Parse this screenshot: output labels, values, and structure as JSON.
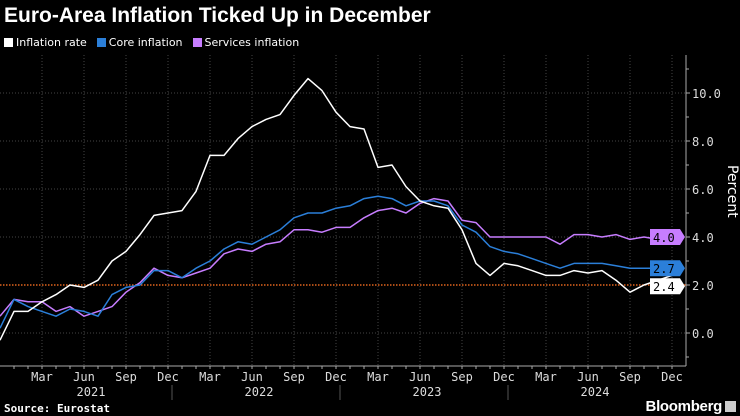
{
  "chart_data": {
    "type": "line",
    "title": "Euro-Area Inflation Ticked Up in December",
    "ylabel": "Percent",
    "ylim": [
      -1.3,
      11.3
    ],
    "yticks": [
      "0.0",
      "2.0",
      "4.0",
      "6.0",
      "8.0",
      "10.0"
    ],
    "x_start": "2020-12",
    "x_end": "2024-12",
    "month_tick_labels": [
      "Mar",
      "Jun",
      "Sep",
      "Dec",
      "Mar",
      "Jun",
      "Sep",
      "Dec",
      "Mar",
      "Jun",
      "Sep",
      "Dec",
      "Mar",
      "Jun",
      "Sep",
      "Dec"
    ],
    "year_labels": [
      "2021",
      "2022",
      "2023",
      "2024"
    ],
    "reference_line": {
      "value": 2.0,
      "color": "#e0641e"
    },
    "grid": true,
    "legend_position": "top-left",
    "series": [
      {
        "name": "Inflation rate",
        "color": "#ffffff",
        "end_label": "2.4",
        "values": [
          -0.3,
          0.9,
          0.9,
          1.3,
          1.6,
          2.0,
          1.9,
          2.2,
          3.0,
          3.4,
          4.1,
          4.9,
          5.0,
          5.1,
          5.9,
          7.4,
          7.4,
          8.1,
          8.6,
          8.9,
          9.1,
          9.9,
          10.6,
          10.1,
          9.2,
          8.6,
          8.5,
          6.9,
          7.0,
          6.1,
          5.5,
          5.3,
          5.2,
          4.3,
          2.9,
          2.4,
          2.9,
          2.8,
          2.6,
          2.4,
          2.4,
          2.6,
          2.5,
          2.6,
          2.2,
          1.7,
          2.0,
          2.2,
          2.4
        ]
      },
      {
        "name": "Core inflation",
        "color": "#2b7fd9",
        "end_label": "2.7",
        "values": [
          0.2,
          1.4,
          1.1,
          0.9,
          0.7,
          1.0,
          0.9,
          0.7,
          1.6,
          1.9,
          2.0,
          2.6,
          2.6,
          2.3,
          2.7,
          3.0,
          3.5,
          3.8,
          3.7,
          4.0,
          4.3,
          4.8,
          5.0,
          5.0,
          5.2,
          5.3,
          5.6,
          5.7,
          5.6,
          5.3,
          5.5,
          5.5,
          5.3,
          4.5,
          4.2,
          3.6,
          3.4,
          3.3,
          3.1,
          2.9,
          2.7,
          2.9,
          2.9,
          2.9,
          2.8,
          2.7,
          2.7,
          2.7,
          2.7
        ]
      },
      {
        "name": "Services inflation",
        "color": "#c77dff",
        "end_label": "4.0",
        "values": [
          0.7,
          1.4,
          1.3,
          1.3,
          0.9,
          1.1,
          0.7,
          0.9,
          1.1,
          1.7,
          2.1,
          2.7,
          2.4,
          2.3,
          2.5,
          2.7,
          3.3,
          3.5,
          3.4,
          3.7,
          3.8,
          4.3,
          4.3,
          4.2,
          4.4,
          4.4,
          4.8,
          5.1,
          5.2,
          5.0,
          5.4,
          5.6,
          5.5,
          4.7,
          4.6,
          4.0,
          4.0,
          4.0,
          4.0,
          4.0,
          3.7,
          4.1,
          4.1,
          4.0,
          4.1,
          3.9,
          4.0,
          3.9,
          4.0
        ]
      }
    ]
  },
  "footer": {
    "source": "Source: Eurostat",
    "brand": "Bloomberg"
  }
}
